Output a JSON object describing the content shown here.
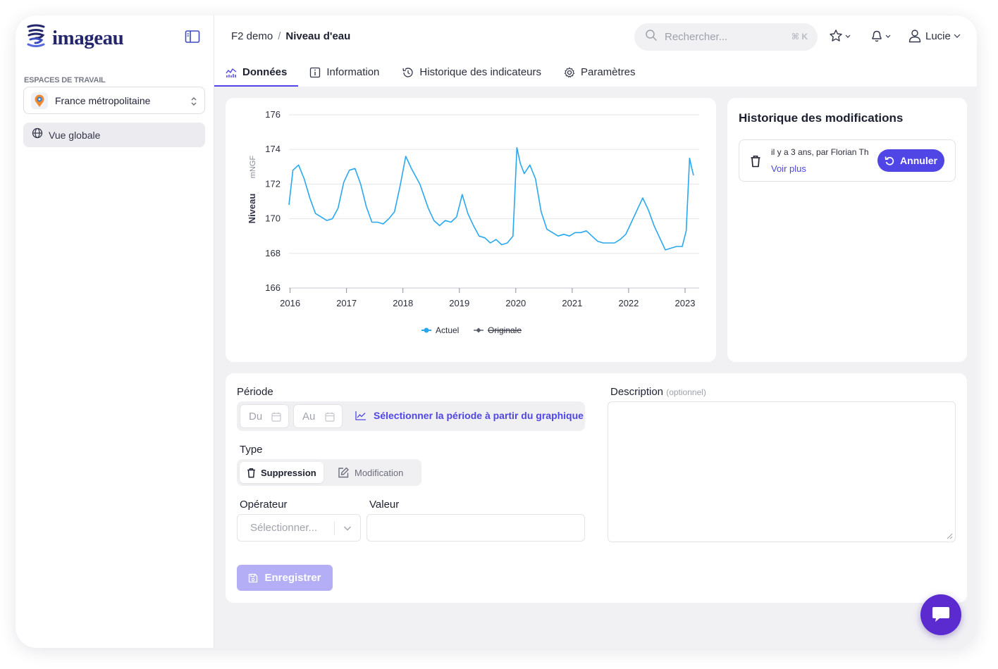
{
  "app": {
    "logo_text": "imageau",
    "brand_color": "#23266b",
    "accent_color": "#4f46e5"
  },
  "sidebar": {
    "workspace_heading": "ESPACES DE TRAVAIL",
    "workspace_selected": "France métropolitaine",
    "nav_items": [
      {
        "label": "Vue globale",
        "icon": "globe-icon",
        "active": true
      }
    ]
  },
  "header": {
    "breadcrumb": {
      "parent": "F2 demo",
      "separator": "/",
      "current": "Niveau d'eau"
    },
    "search": {
      "placeholder": "Rechercher...",
      "shortcut": "⌘ K"
    },
    "user": {
      "name": "Lucie"
    },
    "tabs": [
      {
        "label": "Données",
        "icon": "chart-icon",
        "active": true
      },
      {
        "label": "Information",
        "icon": "info-icon",
        "active": false
      },
      {
        "label": "Historique des indicateurs",
        "icon": "history-icon",
        "active": false
      },
      {
        "label": "Paramètres",
        "icon": "gear-icon",
        "active": false
      }
    ]
  },
  "history": {
    "title": "Historique des modifications",
    "entries": [
      {
        "text": "il y a 3 ans, par Florian Th",
        "link": "Voir plus",
        "action": "Annuler"
      }
    ]
  },
  "form": {
    "period_label": "Période",
    "from_placeholder": "Du",
    "to_placeholder": "Au",
    "pick_from_chart": "Sélectionner la période à partir du graphique",
    "type_label": "Type",
    "type_options": [
      "Suppression",
      "Modification"
    ],
    "type_selected": "Suppression",
    "operator_label": "Opérateur",
    "operator_placeholder": "Sélectionner...",
    "value_label": "Valeur",
    "value": "",
    "description_label": "Description",
    "description_optional": "(optionnel)",
    "description_value": "",
    "save_label": "Enregistrer"
  },
  "chart_data": {
    "type": "line",
    "ylabel": "Niveau",
    "yunit": "mNGF",
    "ylim": [
      166,
      176
    ],
    "yticks": [
      166,
      168,
      170,
      172,
      174,
      176
    ],
    "xlim": [
      2015.98,
      2023.25
    ],
    "xticks": [
      2016,
      2017,
      2018,
      2019,
      2020,
      2021,
      2022,
      2023
    ],
    "grid": true,
    "legend_position": "bottom-center",
    "series": [
      {
        "name": "Actuel",
        "color": "#29a8ef",
        "x": [
          2015.98,
          2016.05,
          2016.15,
          2016.25,
          2016.35,
          2016.45,
          2016.55,
          2016.65,
          2016.75,
          2016.85,
          2016.95,
          2017.05,
          2017.15,
          2017.25,
          2017.35,
          2017.45,
          2017.55,
          2017.65,
          2017.75,
          2017.85,
          2017.95,
          2018.05,
          2018.15,
          2018.3,
          2018.45,
          2018.55,
          2018.65,
          2018.75,
          2018.85,
          2018.95,
          2019.05,
          2019.15,
          2019.25,
          2019.35,
          2019.45,
          2019.55,
          2019.65,
          2019.75,
          2019.85,
          2019.95,
          2020.02,
          2020.08,
          2020.15,
          2020.25,
          2020.35,
          2020.45,
          2020.55,
          2020.65,
          2020.75,
          2020.85,
          2020.95,
          2021.05,
          2021.15,
          2021.25,
          2021.35,
          2021.45,
          2021.55,
          2021.65,
          2021.75,
          2021.85,
          2021.95,
          2022.05,
          2022.15,
          2022.25,
          2022.35,
          2022.45,
          2022.55,
          2022.65,
          2022.75,
          2022.85,
          2022.95,
          2023.02,
          2023.08,
          2023.12,
          2023.15
        ],
        "y": [
          170.8,
          172.8,
          173.1,
          172.3,
          171.2,
          170.3,
          170.1,
          169.9,
          170.0,
          170.6,
          172.1,
          172.8,
          172.9,
          172.0,
          170.7,
          169.8,
          169.8,
          169.7,
          170.0,
          170.4,
          171.9,
          173.6,
          172.9,
          172.0,
          170.6,
          169.9,
          169.6,
          169.9,
          169.8,
          170.1,
          171.4,
          170.3,
          169.6,
          169.0,
          168.9,
          168.6,
          168.8,
          168.5,
          168.6,
          169.0,
          174.1,
          173.2,
          172.6,
          173.1,
          172.3,
          170.4,
          169.4,
          169.2,
          169.0,
          169.1,
          169.0,
          169.2,
          169.2,
          169.3,
          169.0,
          168.7,
          168.6,
          168.6,
          168.6,
          168.8,
          169.1,
          169.8,
          170.5,
          171.2,
          170.5,
          169.6,
          168.9,
          168.2,
          168.3,
          168.4,
          168.4,
          169.3,
          173.5,
          172.9,
          172.5
        ]
      },
      {
        "name": "Originale",
        "color": "#555a66",
        "struck": true,
        "x": [],
        "y": []
      }
    ]
  }
}
